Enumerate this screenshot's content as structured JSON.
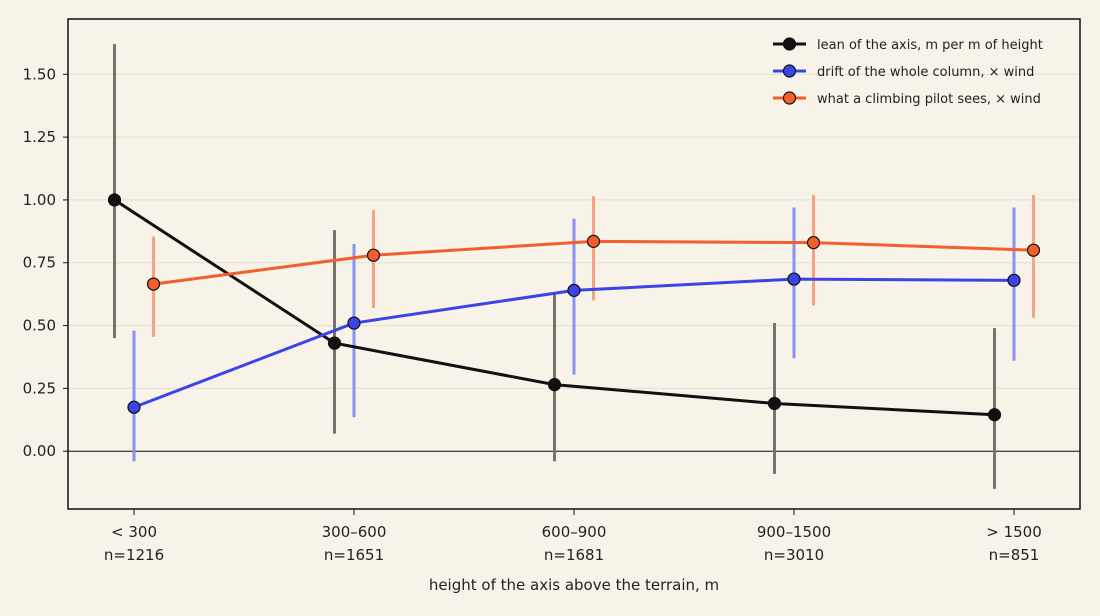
{
  "chart_data": {
    "type": "line",
    "xlabel": "height of the axis above the terrain, m",
    "ylabel": "",
    "categories": [
      "< 300",
      "300–600",
      "600–900",
      "900–1500",
      "> 1500"
    ],
    "category_counts": [
      "n=1216",
      "n=1651",
      "n=1681",
      "n=3010",
      "n=851"
    ],
    "ylim": [
      -0.23,
      1.72
    ],
    "yticks": [
      0.0,
      0.25,
      0.5,
      0.75,
      1.0,
      1.25,
      1.5
    ],
    "ytick_labels": [
      "0.00",
      "0.25",
      "0.50",
      "0.75",
      "1.00",
      "1.25",
      "1.50"
    ],
    "grid": "horizontal",
    "zero_line": true,
    "legend_position": "top-right",
    "series": [
      {
        "name": "lean of the axis, m per m of height",
        "color": "#111111",
        "errorbar_color": "#77736a",
        "offset": -1,
        "values": [
          1.0,
          0.43,
          0.265,
          0.19,
          0.145
        ],
        "err_low": [
          0.45,
          0.07,
          -0.04,
          -0.09,
          -0.15
        ],
        "err_high": [
          1.62,
          0.88,
          0.63,
          0.51,
          0.49
        ]
      },
      {
        "name": "drift of the whole column, × wind",
        "color": "#3b44e6",
        "errorbar_color": "#8b91f2",
        "offset": 0,
        "values": [
          0.175,
          0.51,
          0.64,
          0.685,
          0.68
        ],
        "err_low": [
          -0.04,
          0.135,
          0.305,
          0.37,
          0.36
        ],
        "err_high": [
          0.48,
          0.825,
          0.925,
          0.97,
          0.97
        ]
      },
      {
        "name": "what a climbing pilot sees, × wind",
        "color": "#f45d2c",
        "errorbar_color": "#f5a383",
        "offset": 1,
        "values": [
          0.665,
          0.78,
          0.835,
          0.83,
          0.8
        ],
        "err_low": [
          0.455,
          0.57,
          0.6,
          0.58,
          0.53
        ],
        "err_high": [
          0.855,
          0.96,
          1.015,
          1.02,
          1.02
        ]
      }
    ]
  }
}
